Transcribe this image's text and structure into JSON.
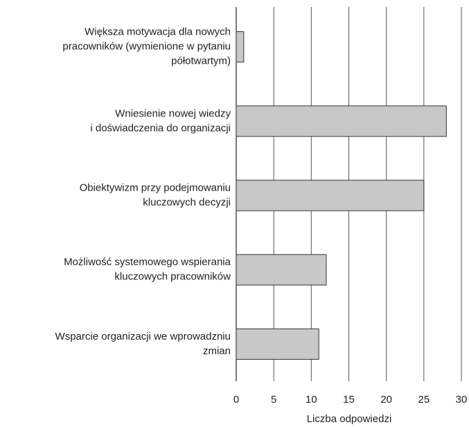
{
  "chart_data": {
    "type": "bar",
    "orientation": "horizontal",
    "categories": [
      "Większa motywacja dla nowych\npracowników (wymienione w pytaniu\npółotwartym)",
      "Wniesienie nowej wiedzy\ni doświadczenia do organizacji",
      "Obiektywizm przy podejmowaniu\nkluczowych decyzji",
      "Możliwość systemowego wspierania\nkluczowych pracowników",
      "Wsparcie organizacji we wprowadzniu\nzmian"
    ],
    "values": [
      1,
      28,
      25,
      12,
      11
    ],
    "color": "#c8c8c8",
    "xlabel": "Liczba odpowiedzi",
    "xlim": [
      0,
      30
    ],
    "xticks": [
      0,
      5,
      10,
      15,
      20,
      25,
      30
    ],
    "grid": true
  }
}
